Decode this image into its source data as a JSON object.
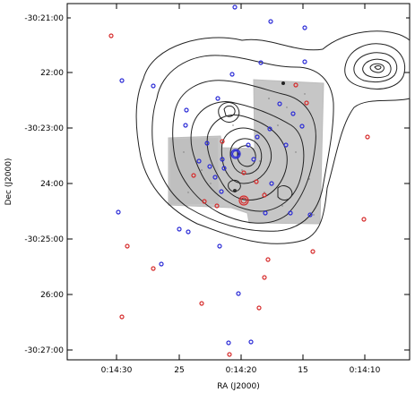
{
  "figure": {
    "x_axis_label": "RA (J2000)",
    "y_axis_label": "Dec (J2000)",
    "x_ticks": [
      "0:14:30",
      "25",
      "0:14:20",
      "15",
      "0:14:10"
    ],
    "y_ticks": [
      "-30:21:00",
      "22:00",
      "-30:23:00",
      "24:00",
      "-30:25:00",
      "26:00",
      "-30:27:00"
    ],
    "colors": {
      "contour": "#222222",
      "grey_image": "#c8c8c8",
      "blue_markers": "#2b2bd6",
      "red_markers": "#d62b2b",
      "frame": "#000000"
    }
  }
}
